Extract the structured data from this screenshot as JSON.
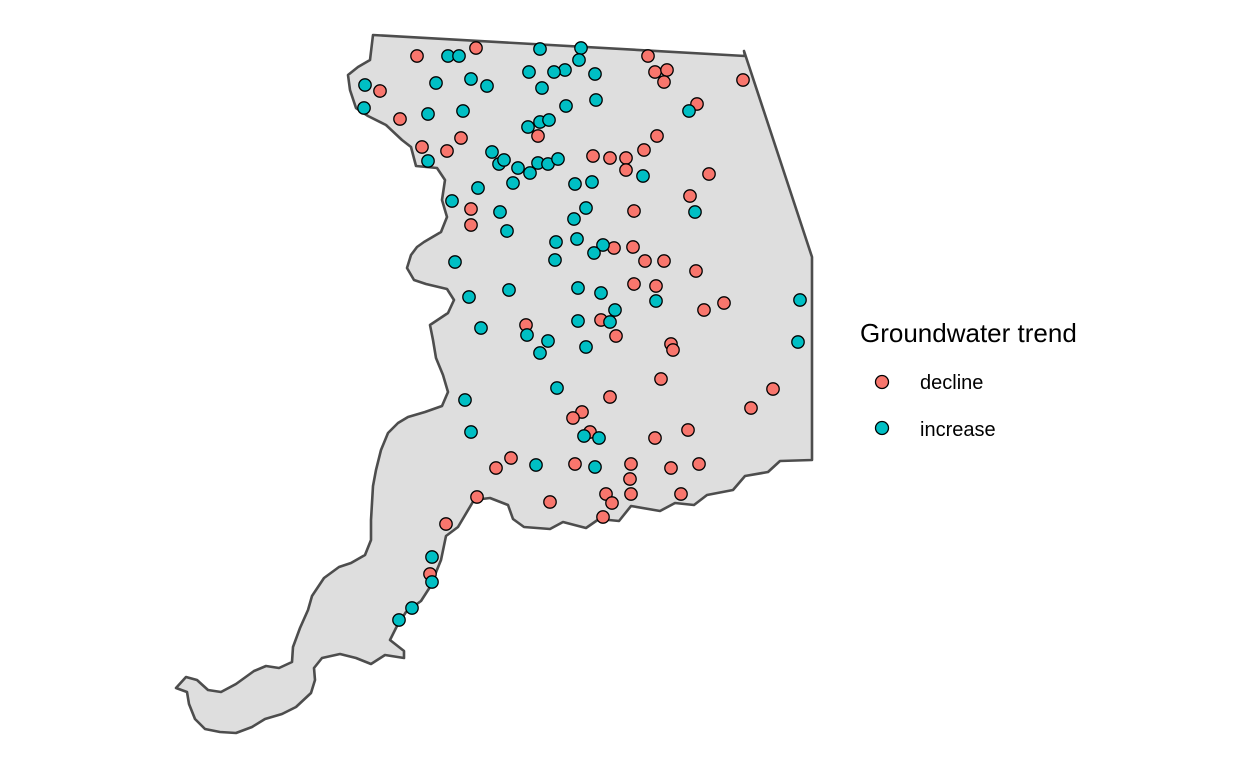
{
  "legend": {
    "title": "Groundwater trend",
    "items": [
      {
        "label": "decline",
        "color": "#F8766D"
      },
      {
        "label": "increase",
        "color": "#00BFC4"
      }
    ]
  },
  "region": {
    "fill": "#DEDEDE",
    "stroke": "#4D4D4D"
  },
  "chart_data": {
    "type": "scatter",
    "series": [
      {
        "name": "decline",
        "color": "#F8766D",
        "points": [
          [
            417,
            56
          ],
          [
            476,
            48
          ],
          [
            648,
            56
          ],
          [
            655,
            72
          ],
          [
            667,
            70
          ],
          [
            664,
            82
          ],
          [
            743,
            80
          ],
          [
            380,
            91
          ],
          [
            400,
            119
          ],
          [
            697,
            104
          ],
          [
            461,
            138
          ],
          [
            447,
            151
          ],
          [
            422,
            147
          ],
          [
            538,
            136
          ],
          [
            657,
            136
          ],
          [
            644,
            150
          ],
          [
            593,
            156
          ],
          [
            610,
            158
          ],
          [
            626,
            158
          ],
          [
            626,
            170
          ],
          [
            709,
            174
          ],
          [
            690,
            196
          ],
          [
            471,
            209
          ],
          [
            471,
            225
          ],
          [
            634,
            211
          ],
          [
            614,
            248
          ],
          [
            633,
            247
          ],
          [
            645,
            261
          ],
          [
            664,
            261
          ],
          [
            696,
            271
          ],
          [
            634,
            284
          ],
          [
            656,
            286
          ],
          [
            724,
            303
          ],
          [
            704,
            310
          ],
          [
            526,
            325
          ],
          [
            601,
            320
          ],
          [
            616,
            336
          ],
          [
            671,
            344
          ],
          [
            673,
            350
          ],
          [
            661,
            379
          ],
          [
            773,
            389
          ],
          [
            751,
            408
          ],
          [
            610,
            397
          ],
          [
            582,
            412
          ],
          [
            573,
            418
          ],
          [
            590,
            432
          ],
          [
            655,
            438
          ],
          [
            688,
            430
          ],
          [
            511,
            458
          ],
          [
            496,
            468
          ],
          [
            575,
            464
          ],
          [
            631,
            464
          ],
          [
            671,
            468
          ],
          [
            699,
            464
          ],
          [
            630,
            479
          ],
          [
            631,
            494
          ],
          [
            681,
            494
          ],
          [
            606,
            494
          ],
          [
            612,
            503
          ],
          [
            603,
            517
          ],
          [
            550,
            502
          ],
          [
            477,
            497
          ],
          [
            446,
            524
          ],
          [
            430,
            574
          ]
        ]
      },
      {
        "name": "increase",
        "color": "#00BFC4",
        "points": [
          [
            448,
            56
          ],
          [
            459,
            56
          ],
          [
            540,
            49
          ],
          [
            581,
            48
          ],
          [
            579,
            60
          ],
          [
            565,
            70
          ],
          [
            529,
            72
          ],
          [
            554,
            72
          ],
          [
            595,
            74
          ],
          [
            365,
            85
          ],
          [
            436,
            83
          ],
          [
            471,
            79
          ],
          [
            487,
            86
          ],
          [
            542,
            88
          ],
          [
            566,
            106
          ],
          [
            596,
            100
          ],
          [
            364,
            108
          ],
          [
            428,
            114
          ],
          [
            463,
            111
          ],
          [
            540,
            122
          ],
          [
            528,
            127
          ],
          [
            549,
            120
          ],
          [
            689,
            111
          ],
          [
            428,
            161
          ],
          [
            492,
            152
          ],
          [
            499,
            164
          ],
          [
            504,
            160
          ],
          [
            518,
            168
          ],
          [
            530,
            173
          ],
          [
            538,
            163
          ],
          [
            548,
            164
          ],
          [
            558,
            159
          ],
          [
            513,
            183
          ],
          [
            478,
            188
          ],
          [
            575,
            184
          ],
          [
            592,
            182
          ],
          [
            452,
            201
          ],
          [
            500,
            212
          ],
          [
            586,
            208
          ],
          [
            574,
            219
          ],
          [
            643,
            176
          ],
          [
            507,
            231
          ],
          [
            556,
            242
          ],
          [
            577,
            239
          ],
          [
            603,
            245
          ],
          [
            594,
            253
          ],
          [
            555,
            260
          ],
          [
            695,
            212
          ],
          [
            455,
            262
          ],
          [
            469,
            297
          ],
          [
            509,
            290
          ],
          [
            578,
            288
          ],
          [
            601,
            293
          ],
          [
            656,
            301
          ],
          [
            615,
            310
          ],
          [
            610,
            322
          ],
          [
            578,
            321
          ],
          [
            481,
            328
          ],
          [
            527,
            335
          ],
          [
            548,
            341
          ],
          [
            540,
            353
          ],
          [
            586,
            347
          ],
          [
            800,
            300
          ],
          [
            798,
            342
          ],
          [
            557,
            388
          ],
          [
            465,
            400
          ],
          [
            471,
            432
          ],
          [
            584,
            436
          ],
          [
            599,
            438
          ],
          [
            536,
            465
          ],
          [
            595,
            467
          ],
          [
            432,
            557
          ],
          [
            432,
            582
          ],
          [
            412,
            608
          ],
          [
            399,
            620
          ]
        ]
      }
    ]
  }
}
